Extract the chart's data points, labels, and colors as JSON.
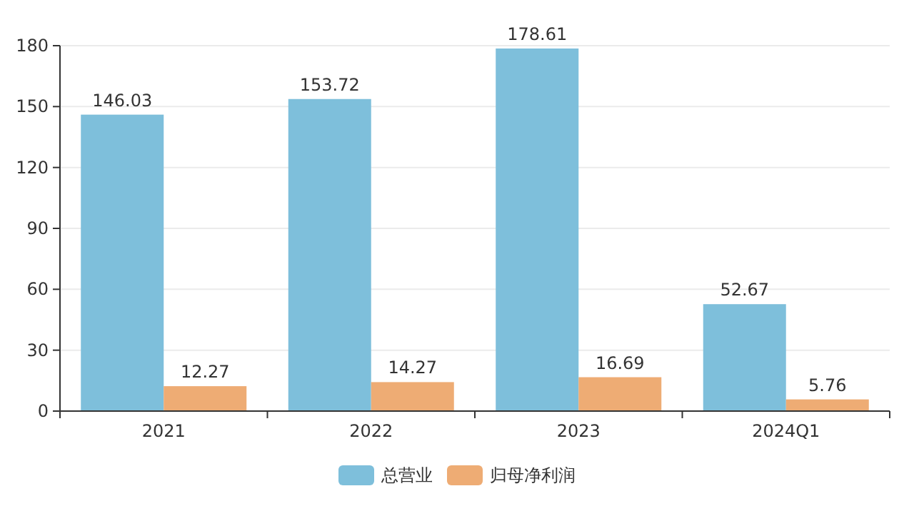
{
  "chart_data": {
    "type": "bar",
    "categories": [
      "2021",
      "2022",
      "2023",
      "2024Q1"
    ],
    "series": [
      {
        "name": "总营业",
        "color": "#7ebfdb",
        "values": [
          146.03,
          153.72,
          178.61,
          52.67
        ]
      },
      {
        "name": "归母净利润",
        "color": "#eeac74",
        "values": [
          12.27,
          14.27,
          16.69,
          5.76
        ]
      }
    ],
    "ylim": [
      0,
      180
    ],
    "yticks": [
      0,
      30,
      60,
      90,
      120,
      150,
      180
    ],
    "grid": "y",
    "legend": "bottom",
    "data_labels": true
  }
}
